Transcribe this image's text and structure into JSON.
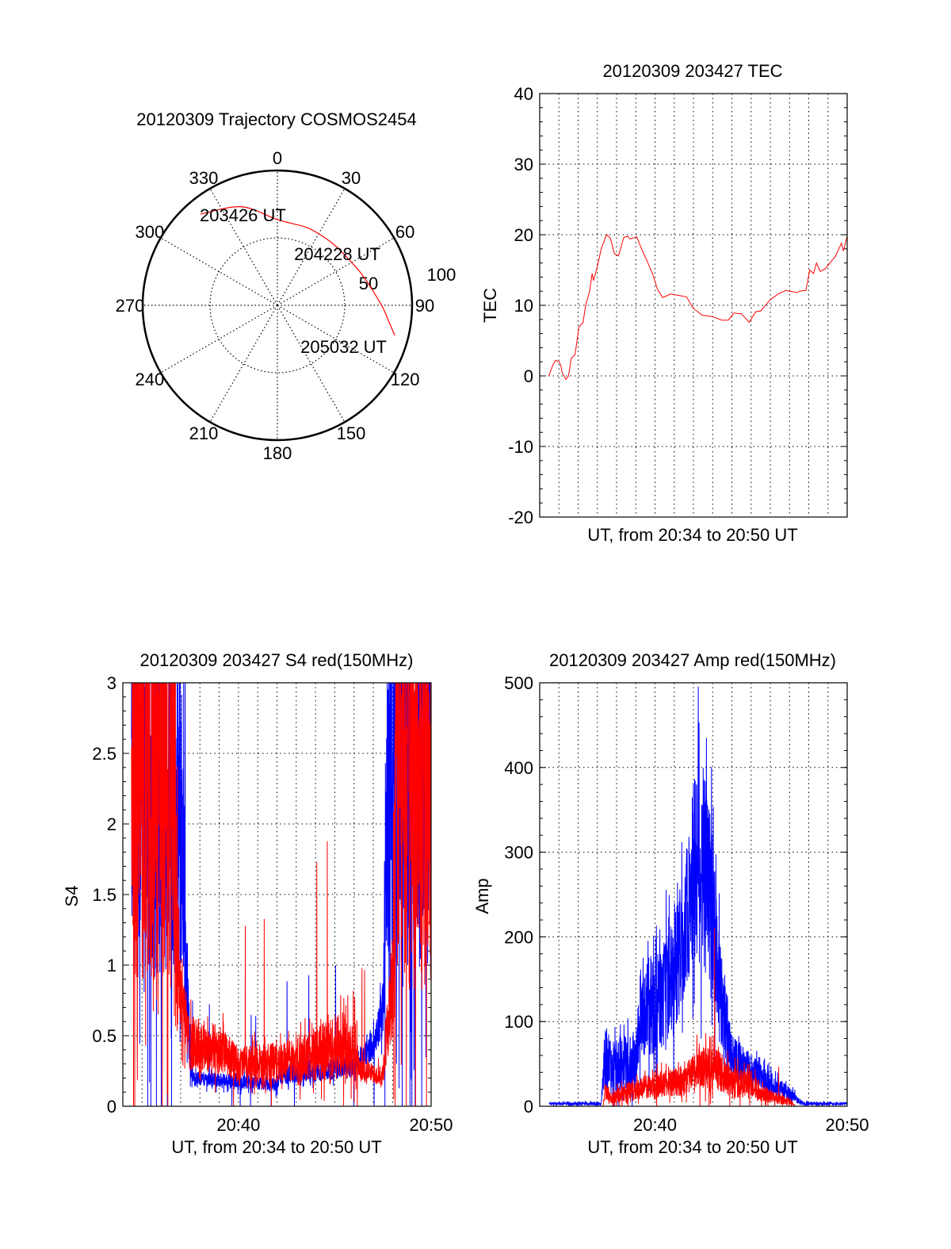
{
  "chart_data": [
    {
      "type": "polar",
      "title": "20120309 Trajectory COSMOS2454",
      "angle_labels": [
        {
          "angle": 0,
          "label": "0"
        },
        {
          "angle": 30,
          "label": "30"
        },
        {
          "angle": 60,
          "label": "60"
        },
        {
          "angle": 90,
          "label": "90"
        },
        {
          "angle": 120,
          "label": "120"
        },
        {
          "angle": 150,
          "label": "150"
        },
        {
          "angle": 180,
          "label": "180"
        },
        {
          "angle": 210,
          "label": "210"
        },
        {
          "angle": 240,
          "label": "240"
        },
        {
          "angle": 270,
          "label": "270"
        },
        {
          "angle": 300,
          "label": "300"
        },
        {
          "angle": 330,
          "label": "330"
        }
      ],
      "radial_labels": [
        "50",
        "100"
      ],
      "rlim": [
        0,
        90
      ],
      "inner_circle_r": 45,
      "time_labels": [
        "203426 UT",
        "204228 UT",
        "205032 UT"
      ],
      "trajectory": {
        "azimuth": [
          319.9,
          340,
          0,
          20,
          33.2,
          45,
          57.2,
          68,
          77.9,
          90.9,
          98,
          104.4
        ],
        "zenith": [
          79.6,
          70,
          57.2,
          55.5,
          55.1,
          55.5,
          56.7,
          59.5,
          63.0,
          70.2,
          75,
          81.0
        ]
      },
      "line_color": "#ff0000"
    },
    {
      "type": "line",
      "title": "20120309 203427 TEC",
      "xlabel": "UT, from 20:34 to 20:50 UT",
      "ylabel": "TEC",
      "x_unit": "minutes after 20:34 UT",
      "xlim": [
        0,
        16
      ],
      "ylim": [
        -20,
        40
      ],
      "yticks": [
        -20,
        -10,
        0,
        10,
        20,
        30,
        40
      ],
      "ytick_labels": [
        "-20",
        "-10",
        "0",
        "10",
        "20",
        "30",
        "40"
      ],
      "xtick_labels": [],
      "grid": true,
      "series": [
        {
          "name": "TEC",
          "color": "#ff0000",
          "x": [
            0.48,
            0.68,
            0.82,
            1.0,
            1.1,
            1.16,
            1.36,
            1.5,
            1.64,
            1.84,
            2.05,
            2.25,
            2.39,
            2.6,
            2.73,
            2.8,
            3.0,
            3.2,
            3.48,
            3.68,
            3.89,
            4.1,
            4.37,
            4.57,
            4.7,
            5.05,
            5.3,
            5.6,
            5.87,
            6.14,
            6.4,
            6.82,
            7.23,
            7.64,
            7.98,
            8.46,
            9.0,
            9.48,
            9.82,
            10.1,
            10.5,
            10.9,
            11.25,
            11.5,
            12.0,
            12.4,
            12.8,
            13.4,
            13.5,
            13.85,
            14.05,
            14.25,
            14.4,
            14.6,
            14.87,
            15.1,
            15.4,
            15.7,
            15.8,
            16.0
          ],
          "y": [
            0,
            1.5,
            2.2,
            2.0,
            1.5,
            0.5,
            -0.5,
            0,
            2.5,
            3,
            7,
            7.5,
            10,
            12,
            14.5,
            13.5,
            15.5,
            18,
            20,
            19.5,
            17.3,
            17,
            19.6,
            19.8,
            19.4,
            19.7,
            18,
            16.2,
            14.5,
            12.2,
            11.1,
            11.6,
            11.4,
            11.2,
            9.6,
            8.6,
            8.4,
            7.9,
            7.9,
            8.9,
            8.8,
            7.6,
            9.1,
            9.2,
            10.8,
            11.6,
            12.1,
            11.8,
            12,
            12.1,
            15,
            14.5,
            16,
            14.8,
            15.2,
            16,
            17,
            18.8,
            17.7,
            19.8
          ]
        }
      ]
    },
    {
      "type": "line",
      "title": "20120309 203427 S4 red(150MHz)",
      "xlabel": "UT, from 20:34 to 20:50 UT",
      "ylabel": "S4",
      "x_unit": "minutes after 20:34 UT",
      "xlim": [
        0,
        16
      ],
      "ylim": [
        0,
        3
      ],
      "yticks": [
        0,
        0.5,
        1,
        1.5,
        2,
        2.5,
        3
      ],
      "ytick_labels": [
        "0",
        "0.5",
        "1",
        "1.5",
        "2",
        "2.5",
        "3"
      ],
      "xticks": [
        6,
        16
      ],
      "xtick_labels": [
        "20:40",
        "20:50"
      ],
      "grid": true,
      "series": [
        {
          "name": "blue",
          "color": "#0000ff",
          "spike_prob": 0.01,
          "envelope": [
            [
              0.45,
              2.2,
              1.3
            ],
            [
              3.1,
              2.0,
              1.1
            ],
            [
              3.3,
              0.8,
              0.4
            ],
            [
              3.6,
              0.2,
              0.05
            ],
            [
              5.5,
              0.18,
              0.05
            ],
            [
              8,
              0.15,
              0.05
            ],
            [
              8.1,
              0.22,
              0.07
            ],
            [
              10.5,
              0.25,
              0.07
            ],
            [
              11.8,
              0.28,
              0.07
            ],
            [
              12.5,
              0.35,
              0.08
            ],
            [
              13.1,
              0.45,
              0.1
            ],
            [
              13.5,
              0.7,
              0.2
            ],
            [
              13.8,
              2.3,
              1.3
            ],
            [
              16,
              2.3,
              1.3
            ]
          ]
        },
        {
          "name": "red",
          "color": "#ff0000",
          "spike_prob": 0.005,
          "envelope": [
            [
              0.45,
              2.5,
              1.6
            ],
            [
              2.7,
              2.4,
              1.6
            ],
            [
              2.9,
              0.9,
              0.3
            ],
            [
              3.2,
              0.7,
              0.25
            ],
            [
              3.4,
              0.45,
              0.2
            ],
            [
              5,
              0.4,
              0.18
            ],
            [
              6,
              0.3,
              0.12
            ],
            [
              9,
              0.32,
              0.15
            ],
            [
              10.5,
              0.4,
              0.22
            ],
            [
              12,
              0.45,
              0.25
            ],
            [
              12.3,
              0.25,
              0.08
            ],
            [
              13.5,
              0.22,
              0.07
            ],
            [
              14.0,
              0.9,
              0.4
            ],
            [
              14.2,
              2.3,
              1.5
            ],
            [
              16,
              2.3,
              1.5
            ]
          ]
        }
      ]
    },
    {
      "type": "line",
      "title": "20120309 203427 Amp red(150MHz)",
      "xlabel": "UT, from 20:34 to 20:50 UT",
      "ylabel": "Amp",
      "x_unit": "minutes after 20:34 UT",
      "xlim": [
        0,
        16
      ],
      "ylim": [
        0,
        500
      ],
      "yticks": [
        0,
        100,
        200,
        300,
        400,
        500
      ],
      "ytick_labels": [
        "0",
        "100",
        "200",
        "300",
        "400",
        "500"
      ],
      "xticks": [
        6,
        16
      ],
      "xtick_labels": [
        "20:40",
        "20:50"
      ],
      "grid": true,
      "series": [
        {
          "name": "blue",
          "color": "#0000ff",
          "spike_prob": 0.0,
          "envelope": [
            [
              0.5,
              3,
              1.5
            ],
            [
              3.2,
              3,
              2
            ],
            [
              3.4,
              60,
              40
            ],
            [
              3.7,
              45,
              30
            ],
            [
              5,
              55,
              35
            ],
            [
              5.2,
              110,
              50
            ],
            [
              6,
              120,
              60
            ],
            [
              7,
              150,
              70
            ],
            [
              7.6,
              220,
              80
            ],
            [
              8.2,
              300,
              130
            ],
            [
              8.6,
              280,
              130
            ],
            [
              9.2,
              180,
              80
            ],
            [
              9.6,
              110,
              50
            ],
            [
              10,
              60,
              25
            ],
            [
              11.5,
              35,
              15
            ],
            [
              13,
              15,
              8
            ],
            [
              13.7,
              3,
              2
            ],
            [
              16,
              3,
              1.5
            ]
          ]
        },
        {
          "name": "red",
          "color": "#ff0000",
          "spike_prob": 0.002,
          "envelope": [
            [
              0.5,
              0,
              0
            ],
            [
              3.3,
              0,
              0
            ],
            [
              3.4,
              20,
              10
            ],
            [
              3.7,
              8,
              5
            ],
            [
              4.2,
              15,
              10
            ],
            [
              6,
              25,
              15
            ],
            [
              7.5,
              30,
              18
            ],
            [
              8.3,
              45,
              25
            ],
            [
              9.2,
              45,
              25
            ],
            [
              10,
              28,
              18
            ],
            [
              11,
              25,
              15
            ],
            [
              12,
              12,
              8
            ],
            [
              13,
              5,
              5
            ],
            [
              13.3,
              0,
              0
            ],
            [
              16,
              0,
              0
            ]
          ]
        }
      ]
    }
  ]
}
